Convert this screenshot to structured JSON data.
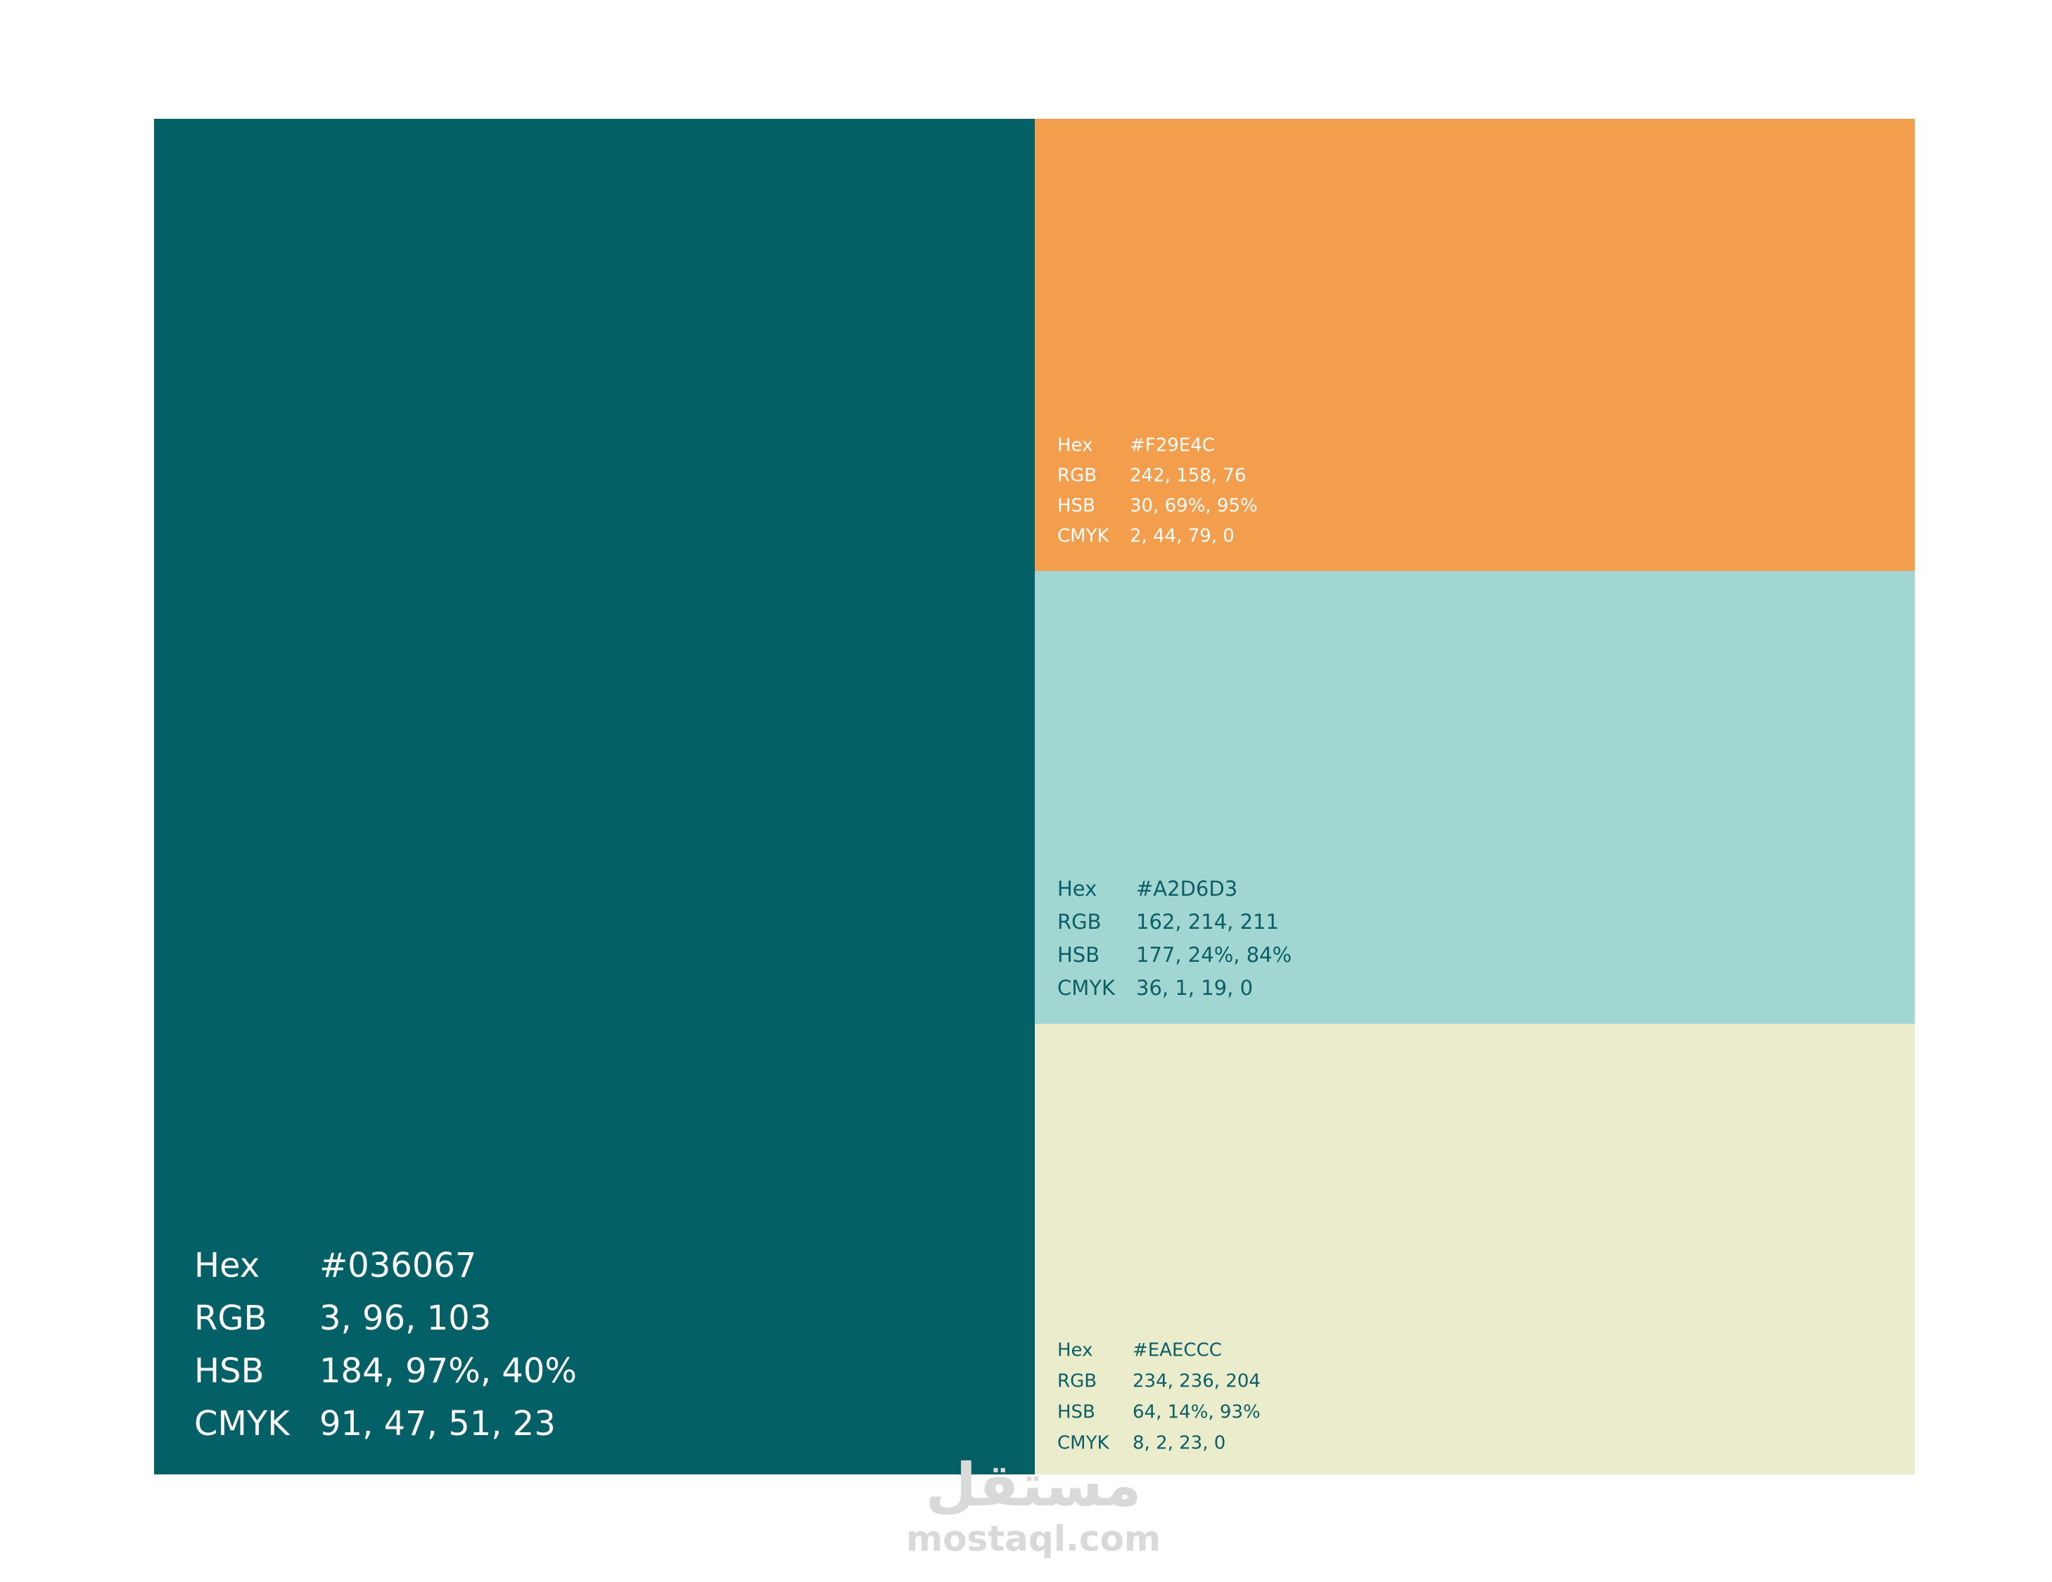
{
  "swatches": [
    {
      "rows": [
        [
          "Hex",
          "#036067"
        ],
        [
          "RGB",
          "3, 96, 103"
        ],
        [
          "HSB",
          "184, 97%, 40%"
        ],
        [
          "CMYK",
          "91, 47, 51, 23"
        ]
      ]
    },
    {
      "rows": [
        [
          "Hex",
          "#F29E4C"
        ],
        [
          "RGB",
          "242, 158, 76"
        ],
        [
          "HSB",
          "30, 69%, 95%"
        ],
        [
          "CMYK",
          "2, 44, 79, 0"
        ]
      ]
    },
    {
      "rows": [
        [
          "Hex",
          "#A2D6D3"
        ],
        [
          "RGB",
          "162, 214, 211"
        ],
        [
          "HSB",
          "177, 24%, 84%"
        ],
        [
          "CMYK",
          "36, 1, 19, 0"
        ]
      ]
    },
    {
      "rows": [
        [
          "Hex",
          "#EAECCC"
        ],
        [
          "RGB",
          "234, 236, 204"
        ],
        [
          "HSB",
          "64, 14%, 93%"
        ],
        [
          "CMYK",
          "8, 2, 23, 0"
        ]
      ]
    }
  ],
  "watermark": {
    "arabic": "مستقل",
    "latin": "mostaql.com"
  }
}
